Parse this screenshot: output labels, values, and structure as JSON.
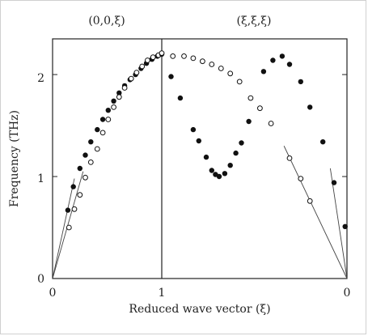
{
  "chart_data": {
    "type": "scatter",
    "title": "",
    "panels": [
      {
        "title": "(0,0,ξ)",
        "x_tick_labels": [
          "0",
          "1"
        ],
        "xlim": [
          0,
          1
        ]
      },
      {
        "title": "(ξ,ξ,ξ)",
        "x_tick_labels": [
          "1",
          "0"
        ],
        "xlim": [
          1,
          0
        ]
      }
    ],
    "xlabel": "Reduced wave vector (ξ)",
    "ylabel": "Frequency (THz)",
    "ylim": [
      0,
      2.35
    ],
    "y_ticks": [
      "0",
      "1",
      "2"
    ],
    "grid": false,
    "legend": "none",
    "series": [
      {
        "marker": "filled-circle",
        "panel": "(0,0,ξ)",
        "points": [
          [
            0.14,
            0.67
          ],
          [
            0.19,
            0.9
          ],
          [
            0.25,
            1.08
          ],
          [
            0.3,
            1.21
          ],
          [
            0.35,
            1.34
          ],
          [
            0.41,
            1.46
          ],
          [
            0.46,
            1.56
          ],
          [
            0.51,
            1.65
          ],
          [
            0.56,
            1.74
          ],
          [
            0.61,
            1.82
          ],
          [
            0.66,
            1.89
          ],
          [
            0.71,
            1.95
          ],
          [
            0.76,
            2.0
          ],
          [
            0.81,
            2.06
          ],
          [
            0.86,
            2.11
          ],
          [
            0.91,
            2.15
          ],
          [
            0.96,
            2.18
          ]
        ]
      },
      {
        "marker": "open-circle",
        "panel": "(0,0,ξ)",
        "points": [
          [
            0.15,
            0.5
          ],
          [
            0.2,
            0.68
          ],
          [
            0.25,
            0.82
          ],
          [
            0.3,
            0.99
          ],
          [
            0.35,
            1.14
          ],
          [
            0.41,
            1.27
          ],
          [
            0.46,
            1.43
          ],
          [
            0.51,
            1.56
          ],
          [
            0.56,
            1.68
          ],
          [
            0.61,
            1.78
          ],
          [
            0.66,
            1.87
          ],
          [
            0.72,
            1.96
          ],
          [
            0.77,
            2.02
          ],
          [
            0.82,
            2.08
          ],
          [
            0.87,
            2.14
          ],
          [
            0.92,
            2.17
          ],
          [
            0.97,
            2.19
          ]
        ]
      },
      {
        "marker": "filled-circle",
        "panel": "(ξ,ξ,ξ)",
        "points": [
          [
            1.0,
            2.2
          ],
          [
            0.95,
            1.98
          ],
          [
            0.9,
            1.77
          ],
          [
            0.83,
            1.46
          ],
          [
            0.8,
            1.35
          ],
          [
            0.76,
            1.19
          ],
          [
            0.73,
            1.06
          ],
          [
            0.71,
            1.02
          ],
          [
            0.69,
            1.0
          ],
          [
            0.66,
            1.03
          ],
          [
            0.63,
            1.11
          ],
          [
            0.6,
            1.23
          ],
          [
            0.57,
            1.33
          ],
          [
            0.53,
            1.54
          ],
          [
            0.45,
            2.03
          ],
          [
            0.4,
            2.14
          ],
          [
            0.35,
            2.18
          ],
          [
            0.31,
            2.1
          ],
          [
            0.25,
            1.93
          ],
          [
            0.2,
            1.68
          ],
          [
            0.13,
            1.34
          ],
          [
            0.07,
            0.94
          ],
          [
            0.01,
            0.51
          ]
        ]
      },
      {
        "marker": "open-circle",
        "panel": "(ξ,ξ,ξ)",
        "points": [
          [
            1.0,
            2.21
          ],
          [
            0.94,
            2.18
          ],
          [
            0.88,
            2.18
          ],
          [
            0.83,
            2.16
          ],
          [
            0.78,
            2.13
          ],
          [
            0.73,
            2.1
          ],
          [
            0.68,
            2.06
          ],
          [
            0.63,
            2.01
          ],
          [
            0.58,
            1.93
          ],
          [
            0.52,
            1.77
          ],
          [
            0.47,
            1.67
          ],
          [
            0.41,
            1.52
          ],
          [
            0.31,
            1.18
          ],
          [
            0.25,
            0.98
          ],
          [
            0.2,
            0.76
          ]
        ]
      }
    ],
    "guide_lines": [
      {
        "panel": "(0,0,ξ)",
        "from": [
          0,
          0
        ],
        "to": [
          0.2,
          0.98
        ]
      },
      {
        "panel": "(0,0,ξ)",
        "from": [
          0,
          0
        ],
        "to": [
          0.28,
          1.05
        ]
      },
      {
        "panel": "(ξ,ξ,ξ)",
        "from": [
          0,
          0
        ],
        "to": [
          0.09,
          1.08
        ]
      },
      {
        "panel": "(ξ,ξ,ξ)",
        "from": [
          0,
          0
        ],
        "to": [
          0.34,
          1.3
        ]
      }
    ]
  }
}
